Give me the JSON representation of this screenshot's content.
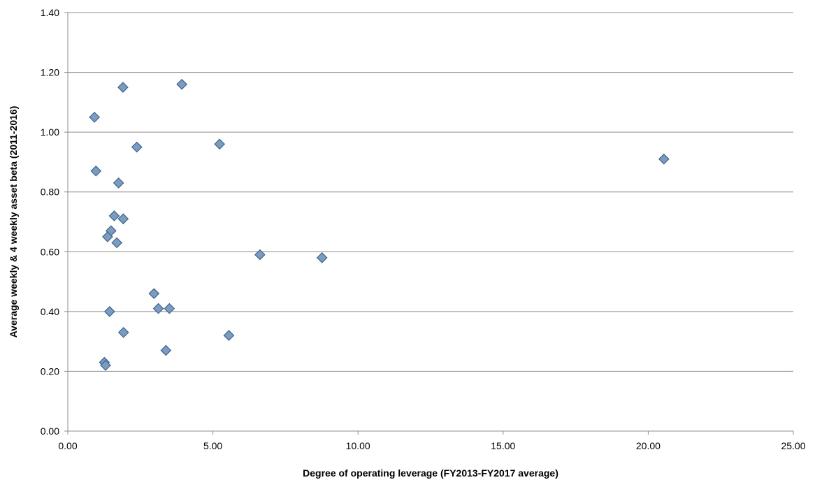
{
  "chart_data": {
    "type": "scatter",
    "title": "",
    "xlabel": "Degree of operating leverage (FY2013-FY2017 average)",
    "ylabel": "Average weekly & 4 weekly asset beta (2011-2016)",
    "xlim": [
      0,
      25
    ],
    "ylim": [
      0,
      1.4
    ],
    "x_ticks": [
      "0.00",
      "5.00",
      "10.00",
      "15.00",
      "20.00",
      "25.00"
    ],
    "y_ticks": [
      "0.00",
      "0.20",
      "0.40",
      "0.60",
      "0.80",
      "1.00",
      "1.20",
      "1.40"
    ],
    "grid": "horizontal",
    "legend": "none",
    "colors": {
      "marker_fill": "#7a9cc0",
      "marker_stroke": "#3f6390",
      "grid": "#8c8c8c"
    },
    "points": [
      {
        "x": 0.92,
        "y": 1.05
      },
      {
        "x": 0.97,
        "y": 0.87
      },
      {
        "x": 1.9,
        "y": 1.15
      },
      {
        "x": 3.93,
        "y": 1.16
      },
      {
        "x": 2.38,
        "y": 0.95
      },
      {
        "x": 5.23,
        "y": 0.96
      },
      {
        "x": 20.54,
        "y": 0.91
      },
      {
        "x": 1.75,
        "y": 0.83
      },
      {
        "x": 1.6,
        "y": 0.72
      },
      {
        "x": 1.91,
        "y": 0.71
      },
      {
        "x": 1.49,
        "y": 0.67
      },
      {
        "x": 1.37,
        "y": 0.65
      },
      {
        "x": 1.69,
        "y": 0.63
      },
      {
        "x": 6.62,
        "y": 0.59
      },
      {
        "x": 8.76,
        "y": 0.58
      },
      {
        "x": 2.97,
        "y": 0.46
      },
      {
        "x": 3.12,
        "y": 0.41
      },
      {
        "x": 3.5,
        "y": 0.41
      },
      {
        "x": 1.44,
        "y": 0.4
      },
      {
        "x": 1.92,
        "y": 0.33
      },
      {
        "x": 5.55,
        "y": 0.32
      },
      {
        "x": 3.38,
        "y": 0.27
      },
      {
        "x": 1.26,
        "y": 0.23
      },
      {
        "x": 1.3,
        "y": 0.22
      }
    ]
  }
}
